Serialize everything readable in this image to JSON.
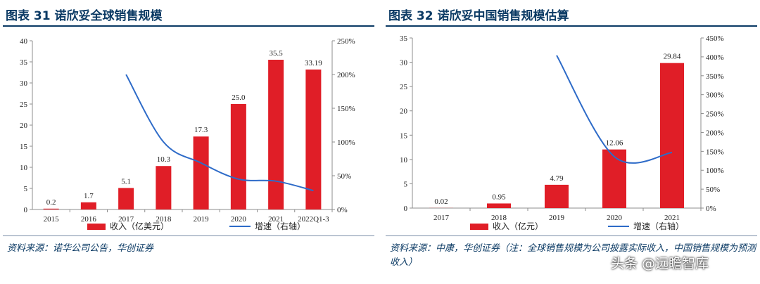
{
  "chart_data": [
    {
      "type": "bar",
      "title": "图表 31  诺欣妥全球销售规模",
      "categories": [
        "2015",
        "2016",
        "2017",
        "2018",
        "2019",
        "2020",
        "2021",
        "2022Q1-3"
      ],
      "series": [
        {
          "name": "收入（亿美元）",
          "type": "bar",
          "axis": "left",
          "color": "#e01e27",
          "values": [
            0.2,
            1.7,
            5.1,
            10.3,
            17.3,
            25.0,
            35.5,
            33.19
          ],
          "labels": [
            "0.2",
            "1.7",
            "5.1",
            "10.3",
            "17.3",
            "25.0",
            "35.5",
            "33.19"
          ]
        },
        {
          "name": "增速（右轴）",
          "type": "line",
          "axis": "right",
          "color": "#2e6bc8",
          "values": [
            null,
            null,
            200,
            100,
            69,
            45,
            42,
            28
          ]
        }
      ],
      "y_left": {
        "min": 0,
        "max": 40,
        "step": 5,
        "ticks": [
          "0",
          "5",
          "10",
          "15",
          "20",
          "25",
          "30",
          "35",
          "40"
        ]
      },
      "y_right": {
        "min": 0,
        "max": 250,
        "step": 50,
        "ticks": [
          "0%",
          "50%",
          "100%",
          "150%",
          "200%",
          "250%"
        ]
      },
      "legend": "bottom",
      "source": "资料来源：诺华公司公告，华创证券"
    },
    {
      "type": "bar",
      "title": "图表 32  诺欣妥中国销售规模估算",
      "categories": [
        "2017",
        "2018",
        "2019",
        "2020",
        "2021"
      ],
      "series": [
        {
          "name": "收入（亿元）",
          "type": "bar",
          "axis": "left",
          "color": "#e01e27",
          "values": [
            0.02,
            0.95,
            4.79,
            12.06,
            29.84
          ],
          "labels": [
            "0.02",
            "0.95",
            "4.79",
            "12.06",
            "29.84"
          ]
        },
        {
          "name": "增速（右轴）",
          "type": "line",
          "axis": "right",
          "color": "#2e6bc8",
          "values": [
            null,
            null,
            404,
            136,
            147
          ]
        }
      ],
      "y_left": {
        "min": 0,
        "max": 35,
        "step": 5,
        "ticks": [
          "0",
          "5",
          "10",
          "15",
          "20",
          "25",
          "30",
          "35"
        ]
      },
      "y_right": {
        "min": 0,
        "max": 450,
        "step": 50,
        "ticks": [
          "0%",
          "50%",
          "100%",
          "150%",
          "200%",
          "250%",
          "300%",
          "350%",
          "400%",
          "450%"
        ]
      },
      "legend": "bottom",
      "source": "资料来源：中康，华创证券（注：全球销售规模为公司披露实际收入，中国销售规模为预测收入）"
    }
  ],
  "watermark": "头条 @远瞻智库"
}
